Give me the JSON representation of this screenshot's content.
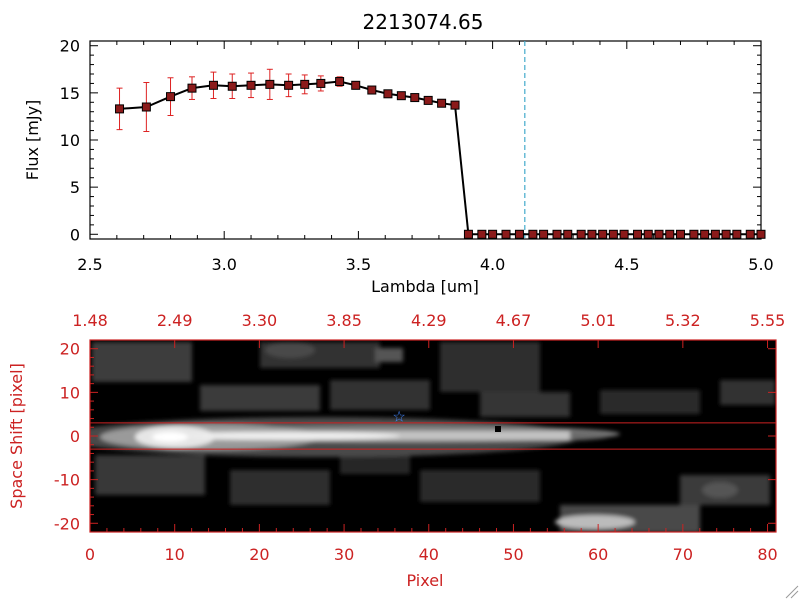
{
  "chart_data": [
    {
      "type": "line",
      "title": "2213074.65",
      "xlabel": "Lambda [um]",
      "ylabel": "Flux [mJy]",
      "xlim": [
        2.5,
        5.0
      ],
      "ylim": [
        -0.5,
        20.5
      ],
      "xticks": [
        "2.5",
        "3.0",
        "3.5",
        "4.0",
        "4.5",
        "5.0"
      ],
      "yticks": [
        "0",
        "5",
        "10",
        "15",
        "20"
      ],
      "grid": false,
      "vline_x": 4.12,
      "series": [
        {
          "x": [
            2.61,
            2.71,
            2.8,
            2.88,
            2.96,
            3.03,
            3.1,
            3.17,
            3.24,
            3.3,
            3.36,
            3.43,
            3.49,
            3.55,
            3.61,
            3.66,
            3.71,
            3.76,
            3.81,
            3.86,
            3.91,
            3.96,
            4.0,
            4.05,
            4.1,
            4.15,
            4.19,
            4.24,
            4.28,
            4.33,
            4.37,
            4.41,
            4.45,
            4.49,
            4.54,
            4.58,
            4.62,
            4.66,
            4.7,
            4.75,
            4.79,
            4.83,
            4.87,
            4.91,
            4.96,
            5.0
          ],
          "y": [
            13.3,
            13.5,
            14.6,
            15.5,
            15.8,
            15.7,
            15.8,
            15.9,
            15.8,
            15.9,
            16.0,
            16.2,
            15.8,
            15.3,
            14.9,
            14.7,
            14.5,
            14.2,
            13.9,
            13.7,
            0,
            0,
            0,
            0,
            0,
            0,
            0,
            0,
            0,
            0,
            0,
            0,
            0,
            0,
            0,
            0,
            0,
            0,
            0,
            0,
            0,
            0,
            0,
            0,
            0,
            0
          ],
          "err": [
            2.2,
            2.6,
            2.0,
            1.2,
            1.4,
            1.3,
            1.3,
            1.6,
            1.2,
            1.0,
            0.8,
            0.5,
            0.4,
            0.3,
            0.3,
            0.3,
            0.3,
            0.3,
            0.3,
            0.3,
            0,
            0,
            0,
            0,
            0,
            0,
            0,
            0,
            0,
            0,
            0,
            0,
            0,
            0,
            0,
            0,
            0,
            0,
            0,
            0,
            0,
            0,
            0,
            0,
            0,
            0
          ]
        }
      ]
    },
    {
      "type": "heatmap",
      "xlabel": "Pixel",
      "ylabel": "Space Shift [pixel]",
      "xlim": [
        0,
        81
      ],
      "ylim": [
        -22,
        22
      ],
      "xticks": [
        "0",
        "10",
        "20",
        "30",
        "40",
        "50",
        "60",
        "70",
        "80"
      ],
      "yticks": [
        "-20",
        "-10",
        "0",
        "10",
        "20"
      ],
      "top_ticks": [
        "1.48",
        "2.49",
        "3.30",
        "3.85",
        "4.29",
        "4.67",
        "5.01",
        "5.32",
        "5.55"
      ],
      "aperture_y": [
        -3,
        3
      ],
      "star_marker": {
        "x": 36.5,
        "y": 4.5
      }
    }
  ],
  "colors": {
    "axis_black": "#000000",
    "axis_red": "#cc2222",
    "error_bar": "#dd2222",
    "marker_fill": "#8b1a1a",
    "dashed_line": "#44aacc",
    "star": "#4488ff"
  }
}
